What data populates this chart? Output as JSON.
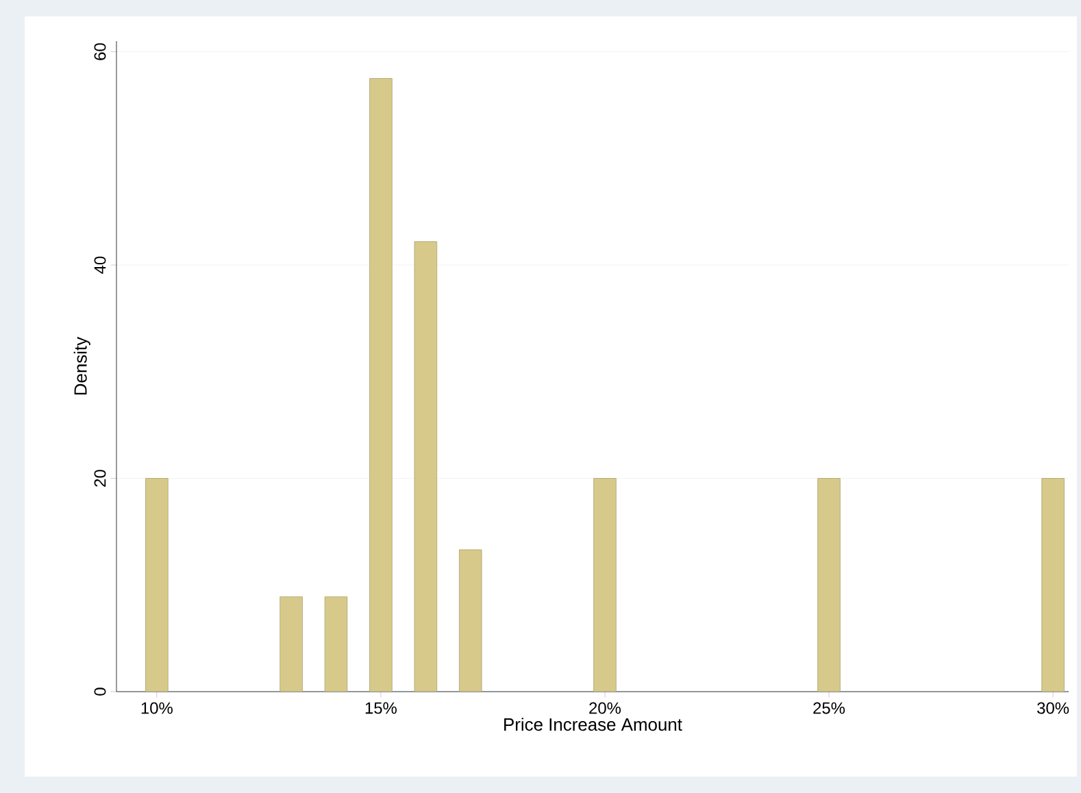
{
  "chart_data": {
    "type": "bar",
    "xlabel": "Price Increase Amount",
    "ylabel": "Density",
    "x": [
      10,
      13,
      14,
      15,
      16,
      17,
      20,
      25,
      30
    ],
    "values": [
      20,
      8.9,
      8.9,
      57.5,
      42.2,
      13.3,
      20,
      20,
      20
    ],
    "color": "#d6c98a",
    "xlim": [
      9.1,
      30.35
    ],
    "ylim": [
      0,
      61
    ],
    "xticks": [
      {
        "value": 10,
        "label": "10%"
      },
      {
        "value": 15,
        "label": "15%"
      },
      {
        "value": 20,
        "label": "20%"
      },
      {
        "value": 25,
        "label": "25%"
      },
      {
        "value": 30,
        "label": "30%"
      }
    ],
    "yticks": [
      0,
      20,
      40,
      60
    ],
    "grid": "y"
  }
}
